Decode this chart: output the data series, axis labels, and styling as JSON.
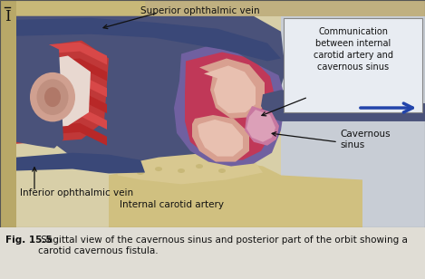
{
  "fig_width": 4.69,
  "fig_height": 3.08,
  "dpi": 100,
  "caption_bold": "Fig. 15.5",
  "caption_text": " Sagittal view of the cavernous sinus and posterior part of the orbit showing a carotid cavernous fistula.",
  "label_superior": "Superior ophthalmic vein",
  "label_inferior": "Inferior ophthalmic vein",
  "label_internal": "Internal carotid artery",
  "label_cavernous": "Cavernous\nsinus",
  "label_communication": "Communication\nbetween internal\ncarotid artery and\ncavernous sinus",
  "bg_light": "#d8cfa8",
  "bg_gray": "#c8cdd5",
  "bone_tan": "#c8b87a",
  "bone_light": "#ddd0a0",
  "sinus_dark_blue": "#4a527a",
  "sinus_mid_blue": "#6878a8",
  "sinus_light_blue": "#8898c0",
  "cavernous_blue": "#7888b0",
  "cavernous_inner": "#9090b8",
  "purple_outer": "#7060a0",
  "red_dark": "#b83030",
  "red_mid": "#d04050",
  "red_light": "#e06070",
  "pink_light": "#e8b0b8",
  "pink_flesh": "#e8c8b0",
  "ica_pink": "#d8a090",
  "ica_light": "#e8c0b0",
  "caption_bg": "#e0ddd5",
  "arrow_blue": "#2244aa",
  "text_color": "#111111",
  "box_bg": "#e8ecf2",
  "box_border": "#888888"
}
